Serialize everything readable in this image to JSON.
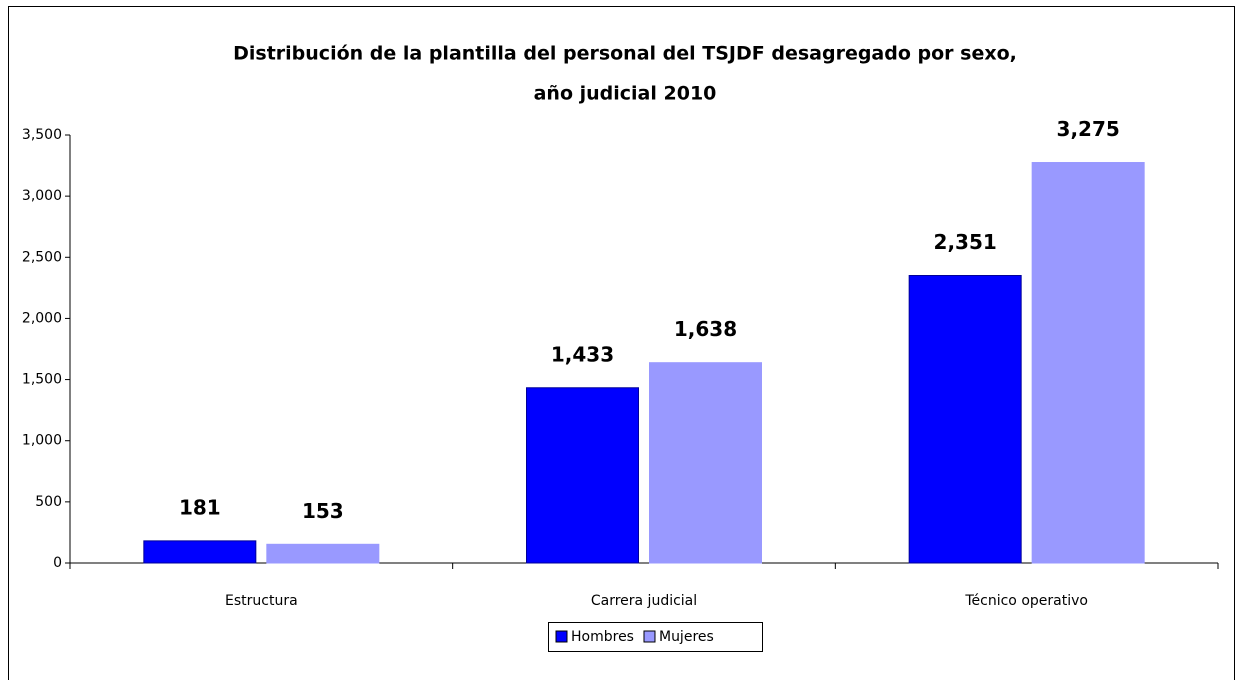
{
  "chart_data": {
    "type": "bar",
    "title": [
      "Distribución de la plantilla del personal del TSJDF desagregado por sexo,",
      "año judicial 2010"
    ],
    "categories": [
      "Estructura",
      "Carrera judicial",
      "Técnico operativo"
    ],
    "series": [
      {
        "name": "Hombres",
        "color": "#0000ff",
        "values": [
          181,
          1433,
          2351
        ],
        "value_labels": [
          "181",
          "1,433",
          "2,351"
        ]
      },
      {
        "name": "Mujeres",
        "color": "#9999ff",
        "values": [
          153,
          1638,
          3275
        ],
        "value_labels": [
          "153",
          "1,638",
          "3,275"
        ]
      }
    ],
    "ylim": [
      0,
      3500
    ],
    "yticks": [
      0,
      500,
      {
        "value": 1000,
        "label": "1,000"
      },
      {
        "value": 1500,
        "label": "1,500"
      },
      {
        "value": 2000,
        "label": "2,000"
      },
      {
        "value": 2500,
        "label": "2,500"
      },
      {
        "value": 3000,
        "label": "3,000"
      },
      {
        "value": 3500,
        "label": "3,500"
      }
    ],
    "grid": false,
    "legend": "bottom"
  }
}
